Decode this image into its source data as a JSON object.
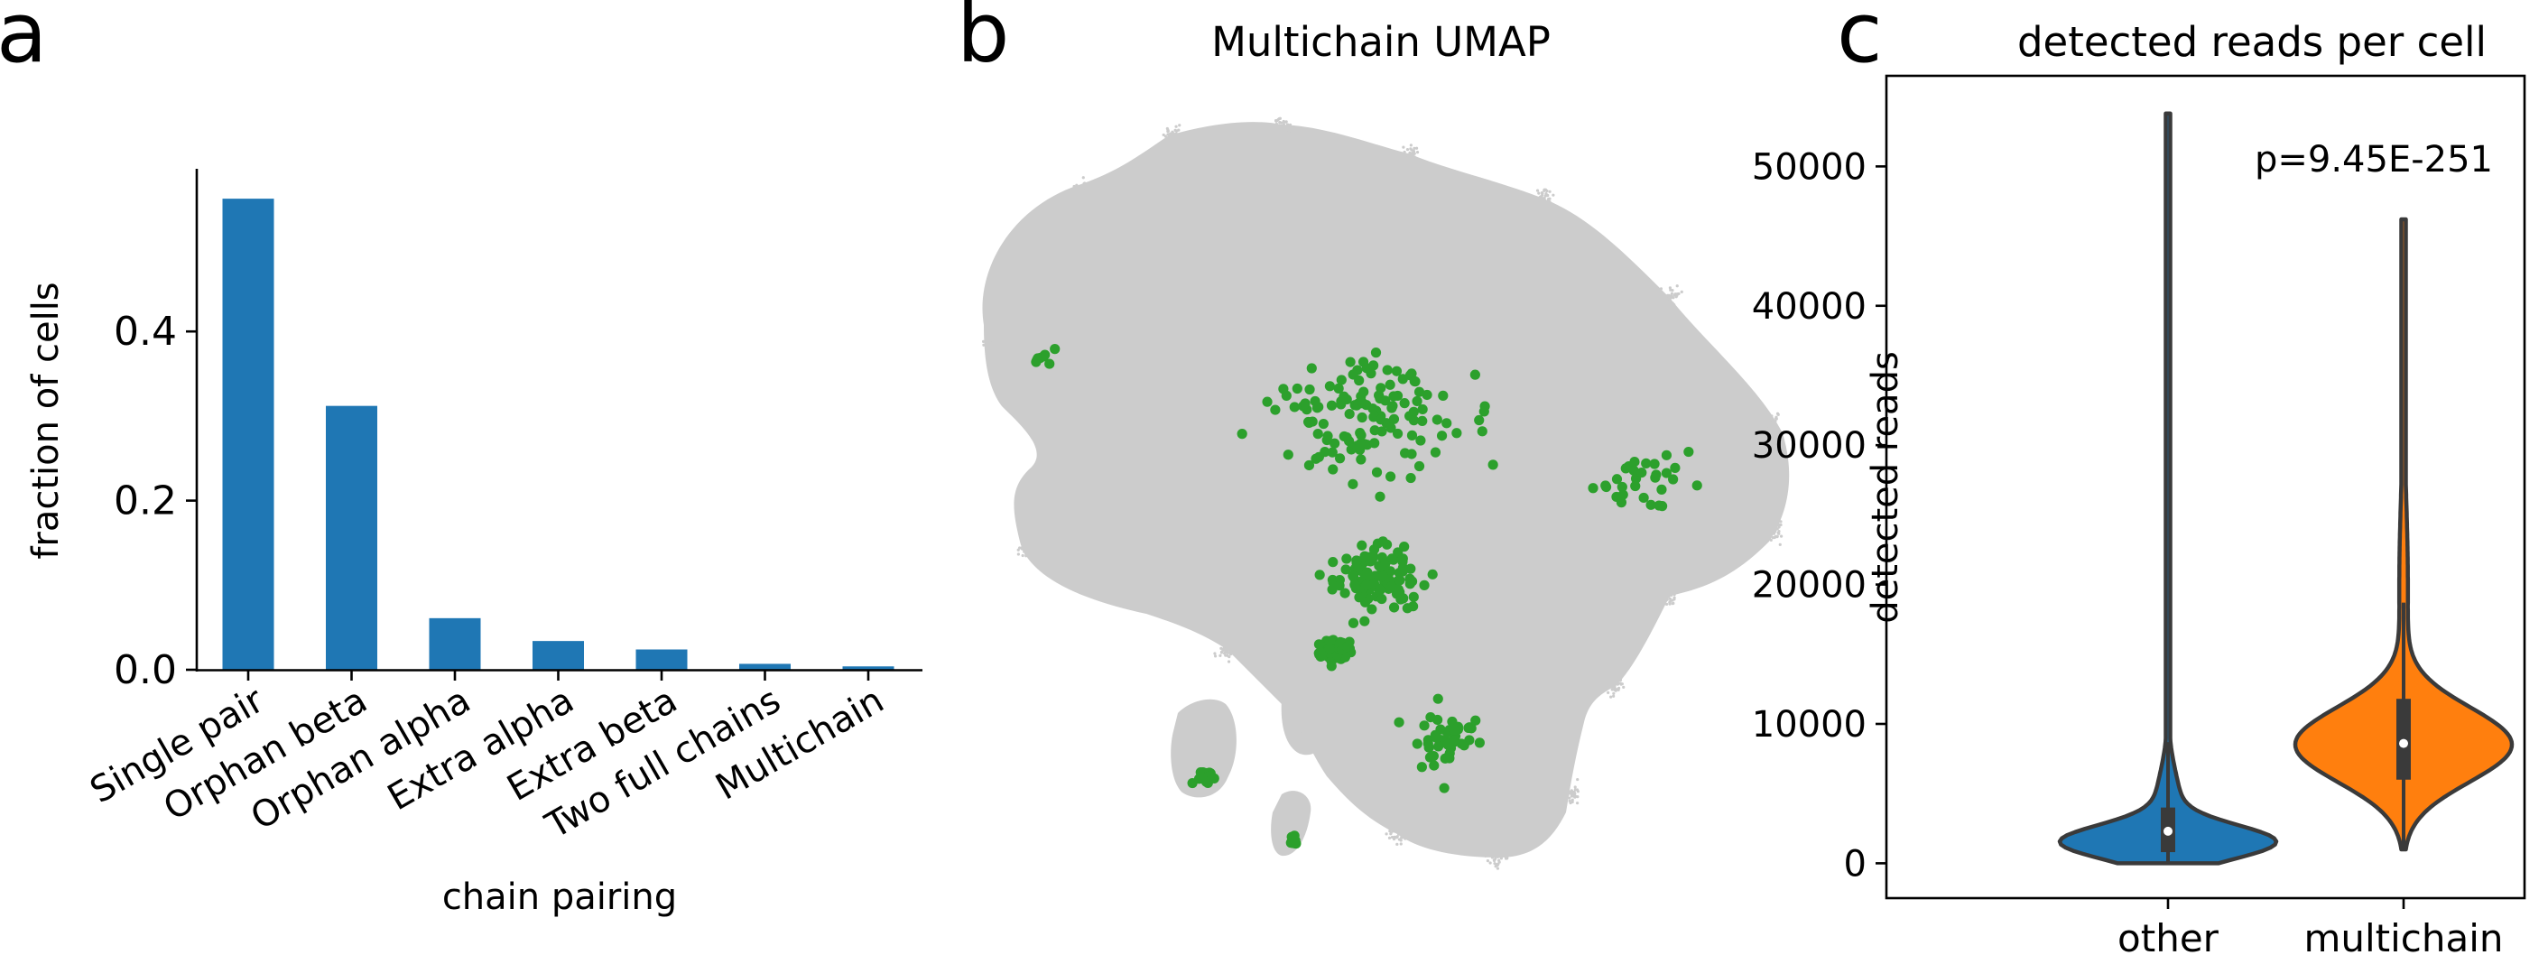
{
  "figure": {
    "panel_labels": [
      "a",
      "b",
      "c"
    ]
  },
  "colors": {
    "bar": "#1f77b4",
    "umap_background": "#cccccc",
    "umap_highlight": "#2ca02c",
    "violin_other": "#1f77b4",
    "violin_multichain": "#ff7f0e",
    "violin_edge": "#3a3a3a"
  },
  "chart_data": [
    {
      "type": "bar",
      "title": "",
      "xlabel": "chain pairing",
      "ylabel": "fraction of cells",
      "categories": [
        "Single pair",
        "Orphan beta",
        "Orphan alpha",
        "Extra alpha",
        "Extra beta",
        "Two full chains",
        "Multichain"
      ],
      "values": [
        0.557,
        0.312,
        0.061,
        0.034,
        0.024,
        0.007,
        0.004
      ],
      "ylim": [
        0,
        0.587
      ],
      "yticks": [
        0.0,
        0.2,
        0.4
      ],
      "ytick_labels": [
        "0.0",
        "0.2",
        "0.4"
      ],
      "grid": false,
      "legend": "none"
    },
    {
      "type": "scatter",
      "title": "Multichain UMAP",
      "xlabel": "",
      "ylabel": "",
      "axes_visible": false,
      "series": [
        {
          "role": "all cells (background)",
          "color": "#cccccc"
        },
        {
          "role": "multichain cells",
          "color": "#2ca02c"
        }
      ],
      "grid": false,
      "legend": "none"
    },
    {
      "type": "violin",
      "title": "detected reads per cell",
      "xlabel": "",
      "ylabel": "detected reads",
      "categories": [
        "other",
        "multichain"
      ],
      "ylim": [
        -2500,
        56500
      ],
      "yticks": [
        0,
        10000,
        20000,
        30000,
        40000,
        50000
      ],
      "ytick_labels": [
        "0",
        "10000",
        "20000",
        "30000",
        "40000",
        "50000"
      ],
      "annotation": "p=9.45E-251",
      "violins": [
        {
          "name": "other",
          "min": 0,
          "q1": 800,
          "median": 2300,
          "q3": 4000,
          "whisker_high": 8700,
          "max": 53800,
          "color": "#1f77b4"
        },
        {
          "name": "multichain",
          "min": 1000,
          "q1": 6000,
          "median": 8600,
          "q3": 11800,
          "whisker_high": 18700,
          "max": 46200,
          "color": "#ff7f0e"
        }
      ],
      "grid": false,
      "legend": "none"
    }
  ]
}
